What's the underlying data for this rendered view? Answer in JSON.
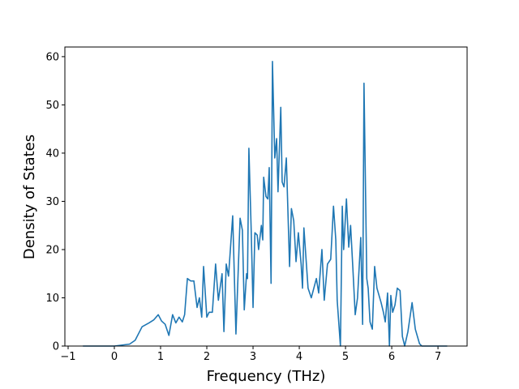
{
  "chart_data": {
    "type": "line",
    "xlabel": "Frequency (THz)",
    "ylabel": "Density of States",
    "xlim": [
      -1.07,
      7.63
    ],
    "ylim": [
      0,
      62
    ],
    "xticks": [
      {
        "value": -1,
        "label": "−1"
      },
      0,
      1,
      2,
      3,
      4,
      5,
      6,
      7
    ],
    "yticks": [
      0,
      10,
      20,
      30,
      40,
      50,
      60
    ],
    "series": [
      {
        "color": "#1f77b4",
        "x": [
          -0.68,
          0.0,
          0.33,
          0.45,
          0.6,
          0.75,
          0.85,
          0.95,
          1.02,
          1.1,
          1.18,
          1.26,
          1.33,
          1.4,
          1.47,
          1.52,
          1.58,
          1.65,
          1.72,
          1.79,
          1.84,
          1.89,
          1.93,
          2.0,
          2.05,
          2.12,
          2.19,
          2.25,
          2.33,
          2.37,
          2.42,
          2.47,
          2.56,
          2.63,
          2.72,
          2.77,
          2.81,
          2.86,
          2.88,
          2.91,
          2.96,
          3.0,
          3.04,
          3.09,
          3.12,
          3.18,
          3.21,
          3.23,
          3.28,
          3.32,
          3.35,
          3.39,
          3.42,
          3.47,
          3.51,
          3.54,
          3.6,
          3.63,
          3.67,
          3.72,
          3.79,
          3.83,
          3.88,
          3.93,
          3.98,
          4.04,
          4.07,
          4.1,
          4.19,
          4.26,
          4.37,
          4.42,
          4.49,
          4.54,
          4.61,
          4.68,
          4.74,
          4.79,
          4.82,
          4.89,
          4.93,
          4.96,
          5.02,
          5.07,
          5.11,
          5.16,
          5.21,
          5.26,
          5.33,
          5.37,
          5.4,
          5.46,
          5.49,
          5.53,
          5.58,
          5.63,
          5.68,
          5.77,
          5.82,
          5.86,
          5.91,
          5.95,
          5.98,
          6.02,
          6.07,
          6.12,
          6.18,
          6.23,
          6.28,
          6.35,
          6.44,
          6.51,
          6.6,
          6.65,
          7.2
        ],
        "values": [
          0,
          0,
          0.4,
          1.2,
          4,
          4.8,
          5.4,
          6.5,
          5.2,
          4.5,
          2.2,
          6.5,
          4.8,
          6,
          5,
          6.5,
          14,
          13.5,
          13.5,
          8,
          10,
          6,
          16.5,
          6,
          7,
          7,
          17,
          9.5,
          15,
          3,
          17,
          14.5,
          27,
          2.5,
          26.5,
          24,
          7.5,
          15,
          14,
          41,
          24,
          8,
          23.5,
          23,
          20,
          25,
          22,
          35,
          31,
          30.5,
          37,
          13,
          59,
          39,
          43,
          32,
          49.5,
          34,
          33,
          39,
          16.5,
          28.5,
          26,
          17.5,
          23.5,
          17,
          12,
          24.5,
          12,
          10,
          14,
          11,
          20,
          9.5,
          17,
          18,
          29,
          22,
          9.5,
          0,
          29,
          20,
          30.5,
          20.5,
          25,
          16,
          6.5,
          10,
          22.5,
          4.5,
          54.5,
          14,
          12,
          5,
          3.5,
          16.5,
          12,
          9,
          7,
          5,
          11,
          0,
          10.5,
          7,
          8.5,
          12,
          11.5,
          2,
          0,
          3,
          9,
          3.5,
          0.5,
          0,
          0
        ]
      }
    ]
  }
}
